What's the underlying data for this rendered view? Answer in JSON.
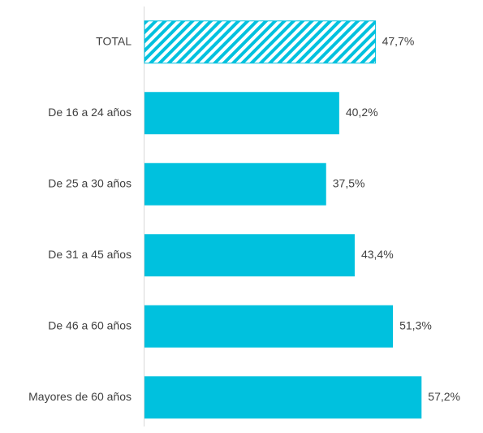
{
  "chart_data": {
    "type": "bar",
    "orientation": "horizontal",
    "title": "",
    "xlabel": "",
    "ylabel": "",
    "categories": [
      "TOTAL",
      "De 16 a 24 años",
      "De 25 a 30 años",
      "De 31 a 45 años",
      "De 46 a 60 años",
      "Mayores de 60 años"
    ],
    "values": [
      47.7,
      40.2,
      37.5,
      43.4,
      51.3,
      57.2
    ],
    "value_labels": [
      "47,7%",
      "40,2%",
      "37,5%",
      "43,4%",
      "51,3%",
      "57,2%"
    ],
    "highlighted_category": "TOTAL",
    "highlight_style": "hatched",
    "bar_color": "#00C1DE",
    "xlim": [
      0,
      60
    ],
    "grid": false,
    "legend": false
  }
}
